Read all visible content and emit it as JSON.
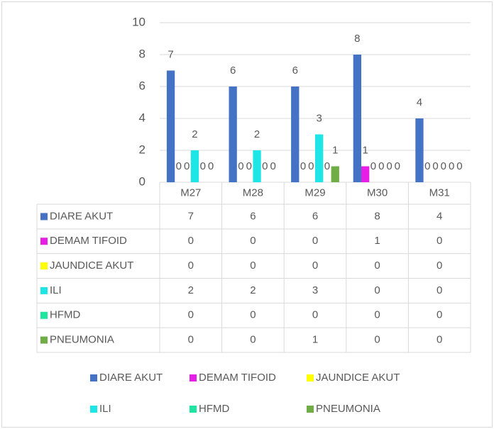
{
  "chart_data": {
    "type": "bar",
    "categories": [
      "M27",
      "M28",
      "M29",
      "M30",
      "M31"
    ],
    "series": [
      {
        "name": "DIARE AKUT",
        "color": "#4472c4",
        "values": [
          7,
          6,
          6,
          8,
          4
        ]
      },
      {
        "name": "DEMAM TIFOID",
        "color": "#e61ee6",
        "values": [
          0,
          0,
          0,
          1,
          0
        ]
      },
      {
        "name": "JAUNDICE AKUT",
        "color": "#ffff00",
        "values": [
          0,
          0,
          0,
          0,
          0
        ]
      },
      {
        "name": "ILI",
        "color": "#1ee6e6",
        "values": [
          2,
          2,
          3,
          0,
          0
        ]
      },
      {
        "name": "HFMD",
        "color": "#1ee6a0",
        "values": [
          0,
          0,
          0,
          0,
          0
        ]
      },
      {
        "name": "PNEUMONIA",
        "color": "#70ad47",
        "values": [
          0,
          0,
          1,
          0,
          0
        ]
      }
    ],
    "ylim": [
      0,
      10
    ],
    "yticks": [
      0,
      2,
      4,
      6,
      8,
      10
    ],
    "grid": true,
    "legend": "bottom",
    "data_table": true
  }
}
